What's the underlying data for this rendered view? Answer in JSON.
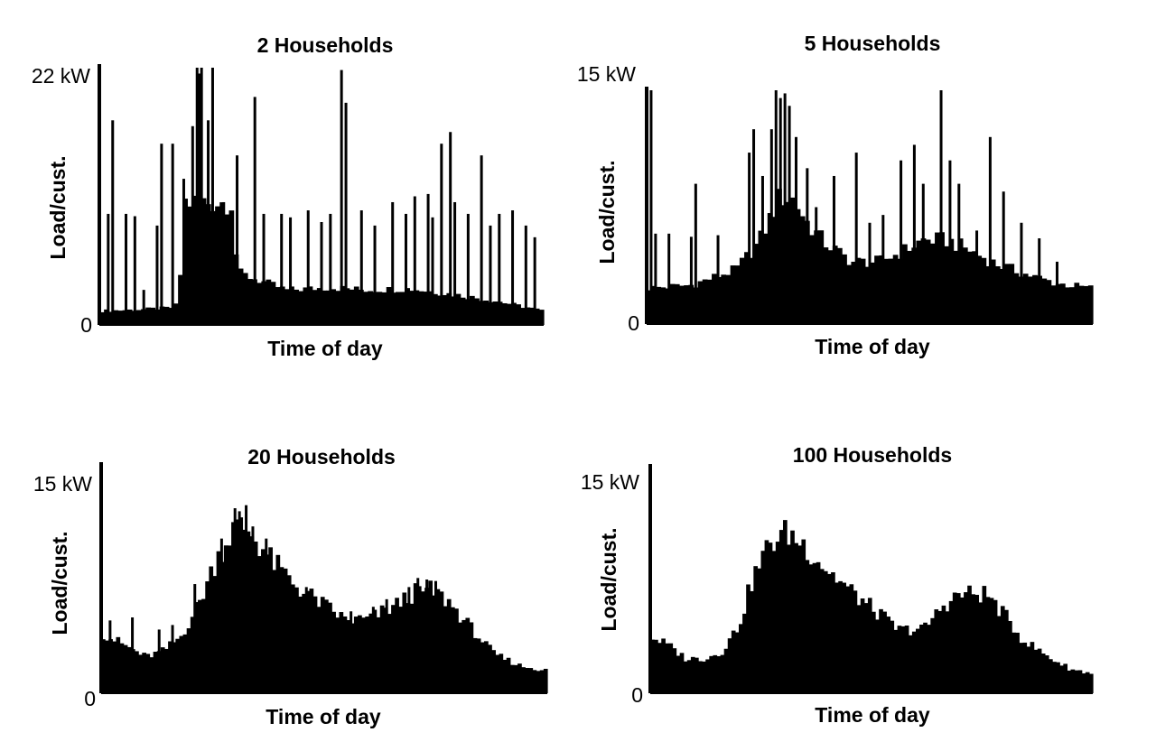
{
  "chart_data": [
    {
      "type": "bar",
      "title": "2 Households",
      "xlabel": "Time of day",
      "ylabel": "Load/cust.",
      "ymax_label": "22 kW",
      "ymin_label": "0",
      "ylim": [
        0,
        22
      ],
      "interval_count": 96,
      "base_profile": [
        [
          0,
          1.2
        ],
        [
          0.08,
          1.3
        ],
        [
          0.17,
          1.5
        ],
        [
          0.18,
          2.5
        ],
        [
          0.19,
          10.5
        ],
        [
          0.3,
          10.5
        ],
        [
          0.31,
          4.5
        ],
        [
          0.42,
          3.0
        ],
        [
          0.52,
          3.2
        ],
        [
          0.6,
          3.0
        ],
        [
          0.7,
          3.1
        ],
        [
          0.8,
          2.6
        ],
        [
          0.9,
          2.0
        ],
        [
          1.0,
          1.2
        ]
      ],
      "spikes": [
        [
          0.02,
          9.5
        ],
        [
          0.03,
          17.5
        ],
        [
          0.06,
          9.5
        ],
        [
          0.08,
          9.3
        ],
        [
          0.1,
          3.0
        ],
        [
          0.13,
          8.5
        ],
        [
          0.14,
          15.5
        ],
        [
          0.165,
          15.5
        ],
        [
          0.19,
          12.5
        ],
        [
          0.21,
          17.0
        ],
        [
          0.22,
          22.0
        ],
        [
          0.225,
          21.5
        ],
        [
          0.23,
          22.0
        ],
        [
          0.245,
          17.5
        ],
        [
          0.255,
          22.0
        ],
        [
          0.28,
          10.5
        ],
        [
          0.31,
          14.5
        ],
        [
          0.35,
          19.5
        ],
        [
          0.37,
          9.5
        ],
        [
          0.41,
          9.5
        ],
        [
          0.43,
          9.2
        ],
        [
          0.47,
          9.8
        ],
        [
          0.5,
          8.8
        ],
        [
          0.52,
          9.5
        ],
        [
          0.545,
          21.8
        ],
        [
          0.555,
          19.0
        ],
        [
          0.59,
          9.8
        ],
        [
          0.62,
          8.5
        ],
        [
          0.66,
          10.5
        ],
        [
          0.69,
          9.5
        ],
        [
          0.71,
          11.0
        ],
        [
          0.74,
          11.2
        ],
        [
          0.75,
          9.2
        ],
        [
          0.77,
          15.5
        ],
        [
          0.79,
          16.5
        ],
        [
          0.8,
          10.5
        ],
        [
          0.83,
          9.5
        ],
        [
          0.86,
          14.5
        ],
        [
          0.88,
          8.5
        ],
        [
          0.9,
          9.5
        ],
        [
          0.93,
          9.8
        ],
        [
          0.96,
          8.5
        ],
        [
          0.98,
          7.5
        ]
      ]
    },
    {
      "type": "bar",
      "title": "5 Households",
      "xlabel": "Time of day",
      "ylabel": "Load/cust.",
      "ymax_label": "15 kW",
      "ymin_label": "0",
      "ylim": [
        0,
        15
      ],
      "interval_count": 96,
      "base_profile": [
        [
          0,
          2.3
        ],
        [
          0.1,
          2.5
        ],
        [
          0.2,
          3.5
        ],
        [
          0.25,
          5.2
        ],
        [
          0.28,
          7.0
        ],
        [
          0.3,
          8.2
        ],
        [
          0.33,
          8.0
        ],
        [
          0.36,
          6.5
        ],
        [
          0.4,
          5.2
        ],
        [
          0.46,
          4.0
        ],
        [
          0.52,
          4.0
        ],
        [
          0.57,
          4.6
        ],
        [
          0.62,
          5.4
        ],
        [
          0.67,
          5.4
        ],
        [
          0.72,
          4.8
        ],
        [
          0.78,
          3.9
        ],
        [
          0.85,
          3.2
        ],
        [
          0.92,
          2.6
        ],
        [
          1.0,
          2.3
        ]
      ],
      "spikes": [
        [
          0.01,
          15.0
        ],
        [
          0.02,
          5.8
        ],
        [
          0.05,
          5.8
        ],
        [
          0.1,
          5.6
        ],
        [
          0.11,
          9.0
        ],
        [
          0.16,
          5.7
        ],
        [
          0.23,
          11.0
        ],
        [
          0.24,
          12.5
        ],
        [
          0.26,
          9.5
        ],
        [
          0.28,
          12.5
        ],
        [
          0.29,
          15.5
        ],
        [
          0.3,
          14.5
        ],
        [
          0.31,
          14.8
        ],
        [
          0.32,
          14.0
        ],
        [
          0.335,
          12.0
        ],
        [
          0.36,
          10.0
        ],
        [
          0.38,
          7.5
        ],
        [
          0.42,
          9.5
        ],
        [
          0.47,
          11.0
        ],
        [
          0.5,
          6.5
        ],
        [
          0.53,
          7.0
        ],
        [
          0.57,
          10.5
        ],
        [
          0.6,
          11.5
        ],
        [
          0.62,
          9.0
        ],
        [
          0.66,
          15.0
        ],
        [
          0.68,
          10.5
        ],
        [
          0.7,
          9.0
        ],
        [
          0.74,
          6.0
        ],
        [
          0.77,
          12.0
        ],
        [
          0.8,
          8.5
        ],
        [
          0.84,
          6.5
        ],
        [
          0.88,
          5.5
        ],
        [
          0.92,
          4.0
        ]
      ]
    },
    {
      "type": "bar",
      "title": "20 Households",
      "xlabel": "Time of day",
      "ylabel": "Load/cust.",
      "ymax_label": "15 kW",
      "ymin_label": "0",
      "ylim": [
        0,
        15
      ],
      "interval_count": 120,
      "base_profile": [
        [
          0,
          4.0
        ],
        [
          0.05,
          3.2
        ],
        [
          0.1,
          2.4
        ],
        [
          0.14,
          2.8
        ],
        [
          0.18,
          3.8
        ],
        [
          0.22,
          6.0
        ],
        [
          0.26,
          9.0
        ],
        [
          0.3,
          11.0
        ],
        [
          0.33,
          10.8
        ],
        [
          0.38,
          8.8
        ],
        [
          0.44,
          7.0
        ],
        [
          0.5,
          5.8
        ],
        [
          0.55,
          4.8
        ],
        [
          0.6,
          4.9
        ],
        [
          0.66,
          5.8
        ],
        [
          0.7,
          6.6
        ],
        [
          0.74,
          6.8
        ],
        [
          0.78,
          6.0
        ],
        [
          0.82,
          4.6
        ],
        [
          0.88,
          2.6
        ],
        [
          0.94,
          1.8
        ],
        [
          1.0,
          1.5
        ]
      ],
      "spikes": [
        [
          0.02,
          4.8
        ],
        [
          0.07,
          5.0
        ],
        [
          0.13,
          4.2
        ],
        [
          0.16,
          4.5
        ],
        [
          0.21,
          7.2
        ],
        [
          0.27,
          10.2
        ],
        [
          0.3,
          12.2
        ],
        [
          0.31,
          12.0
        ],
        [
          0.325,
          12.4
        ],
        [
          0.34,
          11.0
        ],
        [
          0.37,
          10.2
        ],
        [
          0.42,
          7.6
        ],
        [
          0.46,
          7.0
        ],
        [
          0.56,
          5.4
        ],
        [
          0.61,
          5.7
        ],
        [
          0.64,
          6.2
        ],
        [
          0.69,
          7.0
        ],
        [
          0.71,
          7.6
        ],
        [
          0.73,
          7.5
        ],
        [
          0.75,
          7.4
        ],
        [
          0.86,
          3.3
        ]
      ]
    },
    {
      "type": "area",
      "title": "100 Households",
      "xlabel": "Time of day",
      "ylabel": "Load/cust.",
      "ymax_label": "15 kW",
      "ymin_label": "0",
      "ylim": [
        0,
        15
      ],
      "interval_count": 120,
      "base_profile": [
        [
          0,
          3.8
        ],
        [
          0.04,
          3.2
        ],
        [
          0.08,
          2.3
        ],
        [
          0.12,
          2.3
        ],
        [
          0.16,
          2.7
        ],
        [
          0.2,
          4.5
        ],
        [
          0.23,
          7.5
        ],
        [
          0.27,
          10.0
        ],
        [
          0.31,
          10.7
        ],
        [
          0.35,
          9.8
        ],
        [
          0.4,
          8.2
        ],
        [
          0.46,
          6.6
        ],
        [
          0.52,
          5.2
        ],
        [
          0.56,
          4.2
        ],
        [
          0.62,
          4.3
        ],
        [
          0.66,
          5.8
        ],
        [
          0.7,
          6.6
        ],
        [
          0.76,
          6.6
        ],
        [
          0.8,
          5.2
        ],
        [
          0.84,
          3.6
        ],
        [
          0.9,
          2.4
        ],
        [
          0.95,
          1.6
        ],
        [
          1.0,
          1.3
        ]
      ],
      "spikes": []
    }
  ]
}
